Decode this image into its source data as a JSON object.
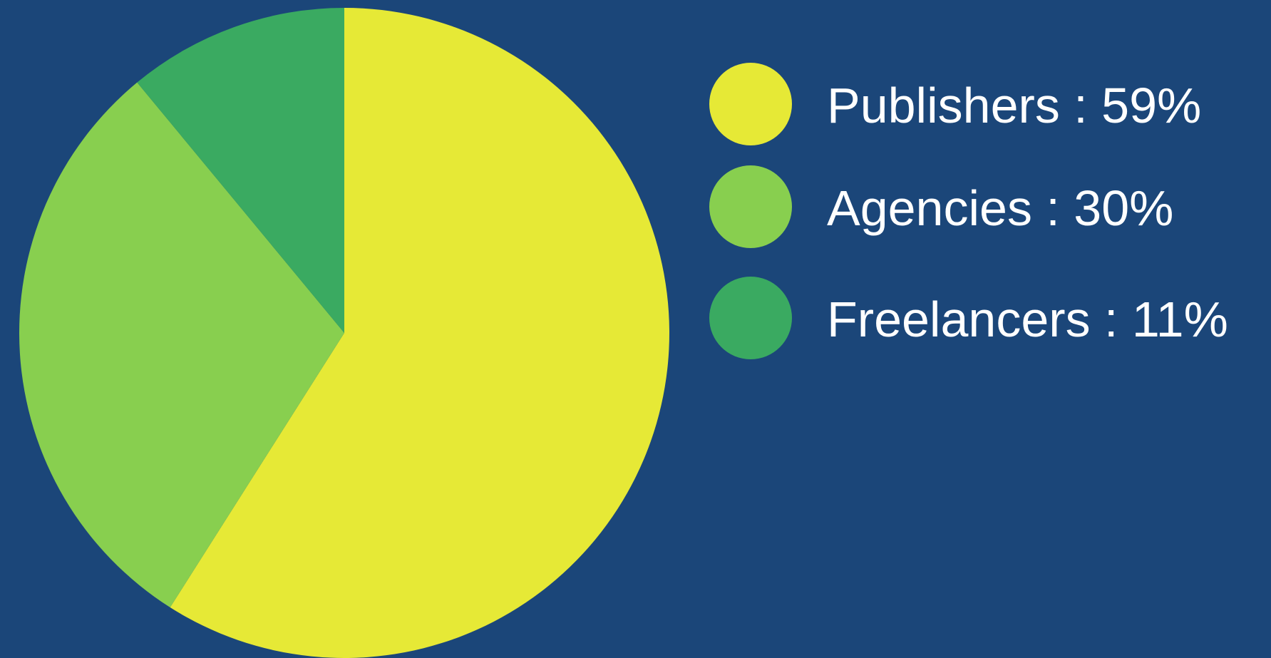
{
  "background_color": "#1b4679",
  "chart_data": {
    "type": "pie",
    "title": "",
    "unit": "%",
    "start_angle_deg": 0,
    "direction": "clockwise",
    "slices": [
      {
        "label": "Publishers",
        "value": 59,
        "color": "#e6e936"
      },
      {
        "label": "Agencies",
        "value": 30,
        "color": "#88cf4f"
      },
      {
        "label": "Freelancers",
        "value": 11,
        "color": "#3aaa61"
      }
    ],
    "legend": {
      "placement": "right",
      "entries": [
        {
          "text": "Publishers : 59%",
          "color": "#e6e936"
        },
        {
          "text": "Agencies : 30%",
          "color": "#88cf4f"
        },
        {
          "text": "Freelancers : 11%",
          "color": "#3aaa61"
        }
      ]
    }
  }
}
